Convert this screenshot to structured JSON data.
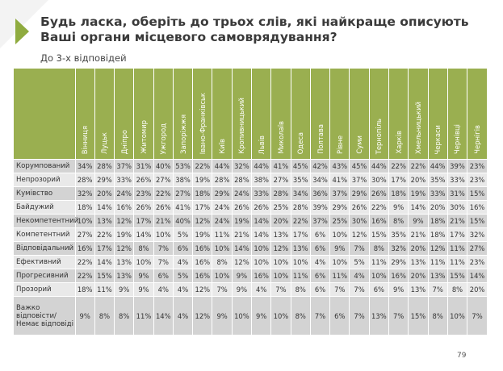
{
  "title": "Будь ласка, оберіть до трьох слів, які найкраще описують Ваші органи місцевого самоврядування?",
  "subtitle": "До 3-х відповідей",
  "page_number": "79",
  "colors": {
    "accent": "#9aaf50",
    "row_dark": "#d3d3d3",
    "row_light": "#e9e9e9"
  },
  "columns": [
    "Вінниця",
    "Луцьк",
    "Дніпро",
    "Житомир",
    "Ужгород",
    "Запоріжжя",
    "Івано-Франківськ",
    "Київ",
    "Кропивницький",
    "Львів",
    "Миколаїв",
    "Одеса",
    "Полтава",
    "Рівне",
    "Суми",
    "Тернопіль",
    "Харків",
    "Хмельницький",
    "Черкаси",
    "Чернівці",
    "Чернігів"
  ],
  "rows": [
    {
      "label": "Корумпований",
      "values": [
        "34%",
        "28%",
        "37%",
        "31%",
        "40%",
        "53%",
        "22%",
        "44%",
        "32%",
        "44%",
        "41%",
        "45%",
        "42%",
        "43%",
        "45%",
        "44%",
        "22%",
        "22%",
        "44%",
        "39%",
        "23%"
      ]
    },
    {
      "label": "Непрозорий",
      "values": [
        "28%",
        "29%",
        "33%",
        "26%",
        "27%",
        "38%",
        "19%",
        "28%",
        "28%",
        "38%",
        "27%",
        "35%",
        "34%",
        "41%",
        "37%",
        "30%",
        "17%",
        "20%",
        "35%",
        "33%",
        "23%"
      ]
    },
    {
      "label": "Кумівство",
      "values": [
        "32%",
        "20%",
        "24%",
        "23%",
        "22%",
        "27%",
        "18%",
        "29%",
        "24%",
        "33%",
        "28%",
        "34%",
        "36%",
        "37%",
        "29%",
        "26%",
        "18%",
        "19%",
        "33%",
        "31%",
        "15%"
      ]
    },
    {
      "label": "Байдужий",
      "values": [
        "18%",
        "14%",
        "16%",
        "26%",
        "26%",
        "41%",
        "17%",
        "24%",
        "26%",
        "26%",
        "25%",
        "28%",
        "39%",
        "29%",
        "26%",
        "22%",
        "9%",
        "14%",
        "20%",
        "30%",
        "16%"
      ]
    },
    {
      "label": "Некомпетентний",
      "values": [
        "10%",
        "13%",
        "12%",
        "17%",
        "21%",
        "40%",
        "12%",
        "24%",
        "19%",
        "14%",
        "20%",
        "22%",
        "37%",
        "25%",
        "30%",
        "16%",
        "8%",
        "9%",
        "18%",
        "21%",
        "15%"
      ]
    },
    {
      "label": "Компетентний",
      "values": [
        "27%",
        "22%",
        "19%",
        "14%",
        "10%",
        "5%",
        "19%",
        "11%",
        "21%",
        "14%",
        "13%",
        "17%",
        "6%",
        "10%",
        "12%",
        "15%",
        "35%",
        "21%",
        "18%",
        "17%",
        "32%"
      ]
    },
    {
      "label": "Відповідальний",
      "values": [
        "16%",
        "17%",
        "12%",
        "8%",
        "7%",
        "6%",
        "16%",
        "10%",
        "14%",
        "10%",
        "12%",
        "13%",
        "6%",
        "9%",
        "7%",
        "8%",
        "32%",
        "20%",
        "12%",
        "11%",
        "27%"
      ]
    },
    {
      "label": "Ефективний",
      "values": [
        "22%",
        "14%",
        "13%",
        "10%",
        "7%",
        "4%",
        "16%",
        "8%",
        "12%",
        "10%",
        "10%",
        "10%",
        "4%",
        "10%",
        "5%",
        "11%",
        "29%",
        "13%",
        "11%",
        "11%",
        "23%"
      ]
    },
    {
      "label": "Прогресивний",
      "values": [
        "22%",
        "15%",
        "13%",
        "9%",
        "6%",
        "5%",
        "16%",
        "10%",
        "9%",
        "16%",
        "10%",
        "11%",
        "6%",
        "11%",
        "4%",
        "10%",
        "16%",
        "20%",
        "13%",
        "15%",
        "14%"
      ]
    },
    {
      "label": "Прозорий",
      "values": [
        "18%",
        "11%",
        "9%",
        "9%",
        "4%",
        "4%",
        "12%",
        "7%",
        "9%",
        "4%",
        "7%",
        "8%",
        "6%",
        "7%",
        "7%",
        "6%",
        "9%",
        "13%",
        "7%",
        "8%",
        "20%"
      ]
    },
    {
      "label": "Важко відповісти/Немає відповіді",
      "values": [
        "9%",
        "8%",
        "8%",
        "11%",
        "14%",
        "4%",
        "12%",
        "9%",
        "10%",
        "9%",
        "10%",
        "8%",
        "7%",
        "6%",
        "7%",
        "13%",
        "7%",
        "15%",
        "8%",
        "10%",
        "7%"
      ]
    }
  ]
}
